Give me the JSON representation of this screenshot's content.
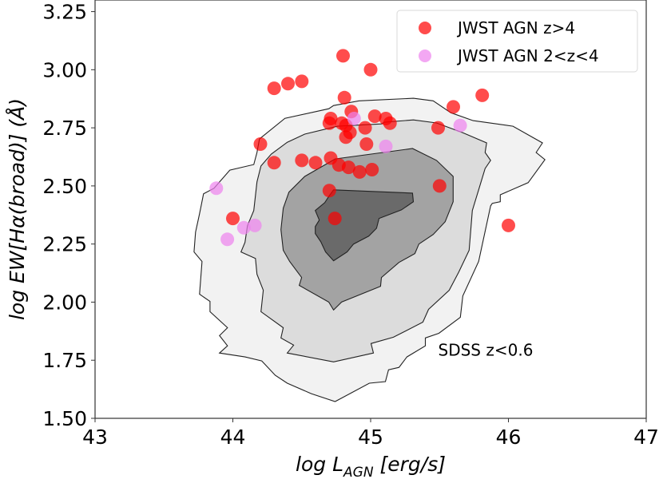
{
  "chart_data": {
    "type": "scatter",
    "title": "",
    "xlabel": "log L_AGN [erg/s]",
    "xlabel_parts": {
      "prefix": "log L",
      "subscript": "AGN",
      "suffix": " [erg/s]"
    },
    "ylabel": "log EW[Hα(broad)] (Å)",
    "xlim": [
      43,
      47
    ],
    "ylim": [
      1.5,
      3.3
    ],
    "xticks": [
      43,
      44,
      45,
      46,
      47
    ],
    "xtick_labels": [
      "43",
      "44",
      "45",
      "46",
      "47"
    ],
    "yticks": [
      1.5,
      1.75,
      2.0,
      2.25,
      2.5,
      2.75,
      3.0,
      3.25
    ],
    "ytick_labels": [
      "1.50",
      "1.75",
      "2.00",
      "2.25",
      "2.50",
      "2.75",
      "3.00",
      "3.25"
    ],
    "grid": false,
    "legend": {
      "placement": "top-right",
      "entries": [
        {
          "label": "JWST AGN z>4",
          "color": "#ff0000"
        },
        {
          "label": "JWST AGN 2<z<4",
          "color": "#ee82ee"
        }
      ]
    },
    "annotations": [
      {
        "text": "SDSS z<0.6",
        "x": 45.49,
        "y": 1.77
      }
    ],
    "contours": {
      "name": "SDSS z<0.6",
      "levels": [
        {
          "fill": "#f2f2f2",
          "points": [
            [
              43.903,
              1.781
            ],
            [
              43.961,
              1.812
            ],
            [
              43.903,
              1.856
            ],
            [
              43.961,
              1.89
            ],
            [
              43.834,
              1.959
            ],
            [
              43.834,
              2.003
            ],
            [
              43.758,
              2.034
            ],
            [
              43.776,
              2.175
            ],
            [
              43.718,
              2.216
            ],
            [
              43.729,
              2.301
            ],
            [
              43.758,
              2.38
            ],
            [
              43.787,
              2.466
            ],
            [
              43.863,
              2.49
            ],
            [
              43.978,
              2.568
            ],
            [
              44.152,
              2.592
            ],
            [
              44.175,
              2.644
            ],
            [
              44.193,
              2.702
            ],
            [
              44.378,
              2.791
            ],
            [
              44.696,
              2.832
            ],
            [
              44.731,
              2.846
            ],
            [
              44.916,
              2.866
            ],
            [
              45.31,
              2.877
            ],
            [
              45.454,
              2.866
            ],
            [
              45.582,
              2.815
            ],
            [
              45.744,
              2.781
            ],
            [
              46.033,
              2.757
            ],
            [
              46.247,
              2.685
            ],
            [
              46.201,
              2.644
            ],
            [
              46.265,
              2.613
            ],
            [
              46.143,
              2.514
            ],
            [
              45.941,
              2.462
            ],
            [
              45.941,
              2.432
            ],
            [
              45.883,
              2.425
            ],
            [
              45.871,
              2.414
            ],
            [
              45.784,
              2.175
            ],
            [
              45.669,
              2.027
            ],
            [
              45.651,
              1.935
            ],
            [
              45.495,
              1.866
            ],
            [
              45.397,
              1.846
            ],
            [
              45.397,
              1.812
            ],
            [
              45.263,
              1.764
            ],
            [
              45.206,
              1.719
            ],
            [
              45.13,
              1.709
            ],
            [
              45.107,
              1.658
            ],
            [
              44.991,
              1.651
            ],
            [
              44.742,
              1.572
            ],
            [
              44.569,
              1.606
            ],
            [
              44.395,
              1.651
            ],
            [
              44.308,
              1.685
            ],
            [
              44.21,
              1.747
            ],
            [
              44.088,
              1.764
            ]
          ]
        },
        {
          "fill": "#dcdcdc",
          "points": [
            [
              44.059,
              2.216
            ],
            [
              44.164,
              2.188
            ],
            [
              44.175,
              2.12
            ],
            [
              44.221,
              2.051
            ],
            [
              44.204,
              1.959
            ],
            [
              44.366,
              1.89
            ],
            [
              44.349,
              1.846
            ],
            [
              44.441,
              1.815
            ],
            [
              44.395,
              1.781
            ],
            [
              44.731,
              1.743
            ],
            [
              45.02,
              1.781
            ],
            [
              45.003,
              1.822
            ],
            [
              45.165,
              1.849
            ],
            [
              45.379,
              1.914
            ],
            [
              45.42,
              1.969
            ],
            [
              45.57,
              2.051
            ],
            [
              45.64,
              2.13
            ],
            [
              45.715,
              2.223
            ],
            [
              45.738,
              2.394
            ],
            [
              45.784,
              2.483
            ],
            [
              45.831,
              2.575
            ],
            [
              45.871,
              2.61
            ],
            [
              45.831,
              2.644
            ],
            [
              45.842,
              2.685
            ],
            [
              45.669,
              2.729
            ],
            [
              45.478,
              2.771
            ],
            [
              45.31,
              2.784
            ],
            [
              45.101,
              2.774
            ],
            [
              45.078,
              2.767
            ],
            [
              44.76,
              2.757
            ],
            [
              44.522,
              2.723
            ],
            [
              44.395,
              2.688
            ],
            [
              44.279,
              2.637
            ],
            [
              44.204,
              2.586
            ],
            [
              44.175,
              2.517
            ],
            [
              44.152,
              2.394
            ],
            [
              44.106,
              2.329
            ],
            [
              44.088,
              2.257
            ]
          ]
        },
        {
          "fill": "#a3a3a3",
          "points": [
            [
              44.482,
              2.072
            ],
            [
              44.696,
              2.0
            ],
            [
              44.731,
              1.966
            ],
            [
              44.789,
              2.0
            ],
            [
              45.072,
              2.068
            ],
            [
              45.078,
              2.106
            ],
            [
              45.206,
              2.171
            ],
            [
              45.321,
              2.209
            ],
            [
              45.35,
              2.25
            ],
            [
              45.454,
              2.291
            ],
            [
              45.541,
              2.346
            ],
            [
              45.599,
              2.432
            ],
            [
              45.599,
              2.541
            ],
            [
              45.478,
              2.61
            ],
            [
              45.304,
              2.661
            ],
            [
              44.742,
              2.616
            ],
            [
              44.522,
              2.541
            ],
            [
              44.407,
              2.473
            ],
            [
              44.366,
              2.404
            ],
            [
              44.349,
              2.312
            ],
            [
              44.366,
              2.223
            ],
            [
              44.412,
              2.175
            ],
            [
              44.499,
              2.106
            ]
          ]
        },
        {
          "fill": "#6a6a6a",
          "points": [
            [
              44.731,
              2.483
            ],
            [
              45.304,
              2.469
            ],
            [
              45.31,
              2.432
            ],
            [
              45.223,
              2.397
            ],
            [
              45.061,
              2.36
            ],
            [
              45.043,
              2.318
            ],
            [
              44.986,
              2.284
            ],
            [
              44.876,
              2.25
            ],
            [
              44.829,
              2.216
            ],
            [
              44.731,
              2.178
            ],
            [
              44.673,
              2.216
            ],
            [
              44.638,
              2.26
            ],
            [
              44.598,
              2.295
            ],
            [
              44.598,
              2.325
            ],
            [
              44.627,
              2.353
            ],
            [
              44.598,
              2.394
            ],
            [
              44.667,
              2.428
            ],
            [
              44.696,
              2.455
            ]
          ]
        }
      ]
    },
    "series": [
      {
        "name": "JWST AGN z>4",
        "color": "#ff0000",
        "points": [
          [
            44.3,
            2.92
          ],
          [
            44.4,
            2.94
          ],
          [
            44.5,
            2.95
          ],
          [
            44.8,
            3.06
          ],
          [
            45.0,
            3.0
          ],
          [
            44.81,
            2.88
          ],
          [
            45.81,
            2.89
          ],
          [
            45.6,
            2.84
          ],
          [
            44.71,
            2.79
          ],
          [
            44.7,
            2.77
          ],
          [
            44.86,
            2.82
          ],
          [
            44.79,
            2.77
          ],
          [
            44.82,
            2.76
          ],
          [
            44.85,
            2.73
          ],
          [
            44.82,
            2.71
          ],
          [
            44.96,
            2.75
          ],
          [
            45.03,
            2.8
          ],
          [
            45.11,
            2.79
          ],
          [
            45.14,
            2.77
          ],
          [
            45.49,
            2.75
          ],
          [
            44.97,
            2.68
          ],
          [
            44.2,
            2.68
          ],
          [
            44.3,
            2.6
          ],
          [
            44.5,
            2.61
          ],
          [
            44.6,
            2.6
          ],
          [
            44.71,
            2.62
          ],
          [
            44.77,
            2.59
          ],
          [
            44.84,
            2.58
          ],
          [
            44.92,
            2.56
          ],
          [
            45.01,
            2.57
          ],
          [
            44.7,
            2.48
          ],
          [
            44.74,
            2.36
          ],
          [
            45.5,
            2.5
          ],
          [
            46.0,
            2.33
          ],
          [
            44.0,
            2.36
          ]
        ]
      },
      {
        "name": "JWST AGN 2<z<4",
        "color": "#ee82ee",
        "points": [
          [
            44.88,
            2.79
          ],
          [
            45.11,
            2.67
          ],
          [
            45.65,
            2.76
          ],
          [
            43.88,
            2.49
          ],
          [
            43.96,
            2.27
          ],
          [
            44.08,
            2.32
          ],
          [
            44.16,
            2.33
          ]
        ]
      }
    ]
  }
}
